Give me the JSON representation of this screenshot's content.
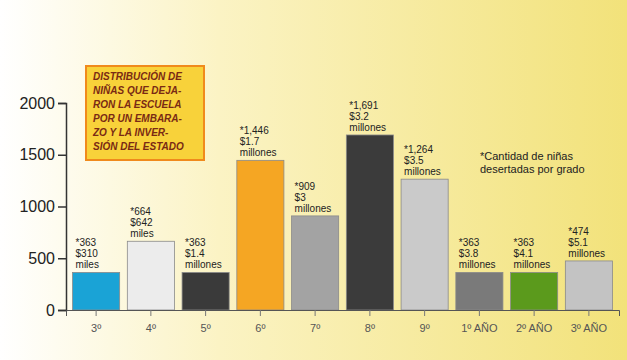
{
  "chart_data": {
    "type": "bar",
    "title": [
      "DISTRIBUCIÓN DE",
      "NIÑAS QUE DEJA-",
      "RON LA ESCUELA",
      "POR UN EMBARA-",
      "ZO Y LA INVER-",
      "SIÓN DEL ESTADO"
    ],
    "annotations": [
      "*Cantidad de niñas",
      "desertadas por grado"
    ],
    "categories": [
      "3º",
      "4º",
      "5º",
      "6º",
      "7º",
      "8º",
      "9º",
      "1º AÑO",
      "2º AÑO",
      "3º AÑO"
    ],
    "values": [
      363,
      664,
      363,
      1446,
      909,
      1691,
      1264,
      363,
      363,
      474
    ],
    "value_labels": [
      "*363",
      "*664",
      "*363",
      "*1,446",
      "*909",
      "*1,691",
      "*1,264",
      "*363",
      "*363",
      "*474"
    ],
    "investment_labels": [
      [
        "$310",
        "miles"
      ],
      [
        "$642",
        "miles"
      ],
      [
        "$1.4",
        "millones"
      ],
      [
        "$1.7",
        "millones"
      ],
      [
        "$3",
        "millones"
      ],
      [
        "$3.2",
        "millones"
      ],
      [
        "$3.5",
        "millones"
      ],
      [
        "$3.8",
        "millones"
      ],
      [
        "$4.1",
        "millones"
      ],
      [
        "$5.1",
        "millones"
      ]
    ],
    "colors": [
      "#1aa3d6",
      "#ececec",
      "#3a3a3a",
      "#f5a623",
      "#a3a3a3",
      "#3b3b3b",
      "#cacaca",
      "#7a7a7a",
      "#5b9a1c",
      "#c3c3c3"
    ],
    "ylim": [
      0,
      2000
    ],
    "yticks": [
      0,
      500,
      1000,
      1500,
      2000
    ],
    "data_labels": true,
    "grid": false
  }
}
